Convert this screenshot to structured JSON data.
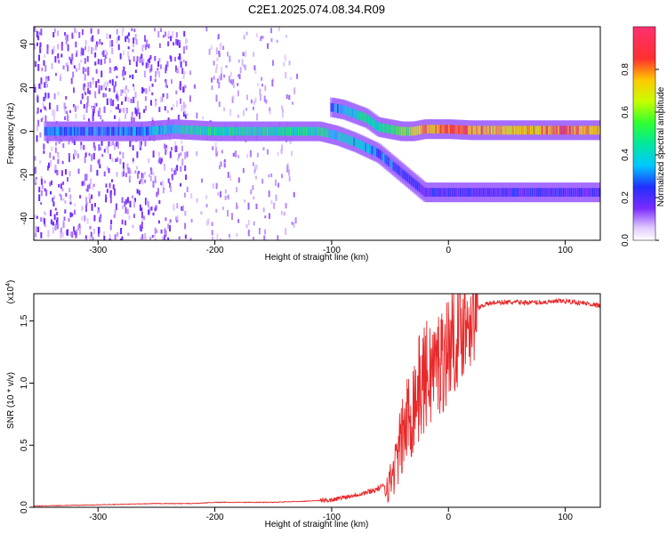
{
  "title": "C2E1.2025.074.08.34.R09",
  "chart_data": [
    {
      "type": "heatmap",
      "xlabel": "Height of straight line (km)",
      "ylabel": "Frequency (Hz)",
      "xlim": [
        -355,
        130
      ],
      "ylim": [
        -50,
        48
      ],
      "xticks": [
        "-300",
        "-200",
        "-100",
        "0",
        "100"
      ],
      "yticks": [
        "-40",
        "-20",
        "0",
        "20",
        "40"
      ],
      "colorbar": {
        "label": "Normalized spectral amplitude",
        "range": [
          0,
          1
        ],
        "ticks": [
          "0.0",
          "0.2",
          "0.4",
          "0.6",
          "0.8"
        ]
      },
      "main_trace": {
        "x": [
          -345,
          -300,
          -260,
          -235,
          -200,
          -150,
          -110,
          -95,
          -80,
          -60,
          -40,
          -20,
          0,
          40,
          80,
          130
        ],
        "freq": [
          0,
          0,
          0,
          1,
          0,
          0,
          0,
          -2,
          -5,
          -10,
          -19,
          -28,
          -28,
          -28,
          -28,
          -28
        ],
        "amplitude": [
          0.3,
          0.3,
          0.3,
          0.4,
          0.45,
          0.45,
          0.45,
          0.4,
          0.35,
          0.3,
          0.25,
          0.2,
          0.2,
          0.2,
          0.2,
          0.2
        ]
      },
      "upper_trace": {
        "x": [
          -100,
          -90,
          -80,
          -70,
          -60,
          -50,
          -40,
          -30,
          -20,
          -10,
          0,
          20,
          50,
          80,
          100,
          130
        ],
        "freq": [
          11,
          10,
          8,
          6,
          2,
          1,
          0,
          0,
          1,
          1,
          1,
          0.5,
          0.5,
          0.5,
          0.5,
          0.5
        ],
        "amplitude": [
          0.3,
          0.35,
          0.4,
          0.45,
          0.45,
          0.5,
          0.55,
          0.65,
          0.8,
          0.75,
          0.85,
          0.8,
          0.7,
          0.75,
          0.85,
          0.7
        ]
      },
      "noise_region_x": [
        -355,
        -130
      ]
    },
    {
      "type": "line",
      "xlabel": "Height of straight line (km)",
      "ylabel": "SNR (10 * v/v)",
      "scale_label": "(x10^4)",
      "xlim": [
        -355,
        130
      ],
      "ylim": [
        0,
        1.72
      ],
      "xticks": [
        "-300",
        "-200",
        "-100",
        "0",
        "100"
      ],
      "yticks": [
        "0.0",
        "0.5",
        "1.0",
        "1.5"
      ],
      "series": [
        {
          "color": "#e8292b",
          "x": [
            -355,
            -300,
            -250,
            -220,
            -200,
            -150,
            -120,
            -100,
            -90,
            -80,
            -70,
            -60,
            -50,
            -45,
            -40,
            -35,
            -30,
            -25,
            -20,
            -15,
            -10,
            -5,
            0,
            10,
            20,
            30,
            40,
            60,
            80,
            100,
            120,
            130
          ],
          "y": [
            0.01,
            0.02,
            0.03,
            0.03,
            0.04,
            0.04,
            0.05,
            0.06,
            0.08,
            0.1,
            0.12,
            0.15,
            0.2,
            0.35,
            0.55,
            0.7,
            0.85,
            0.95,
            1.05,
            1.1,
            1.15,
            1.2,
            1.3,
            1.45,
            1.58,
            1.63,
            1.65,
            1.65,
            1.65,
            1.66,
            1.64,
            1.62
          ]
        }
      ]
    }
  ]
}
